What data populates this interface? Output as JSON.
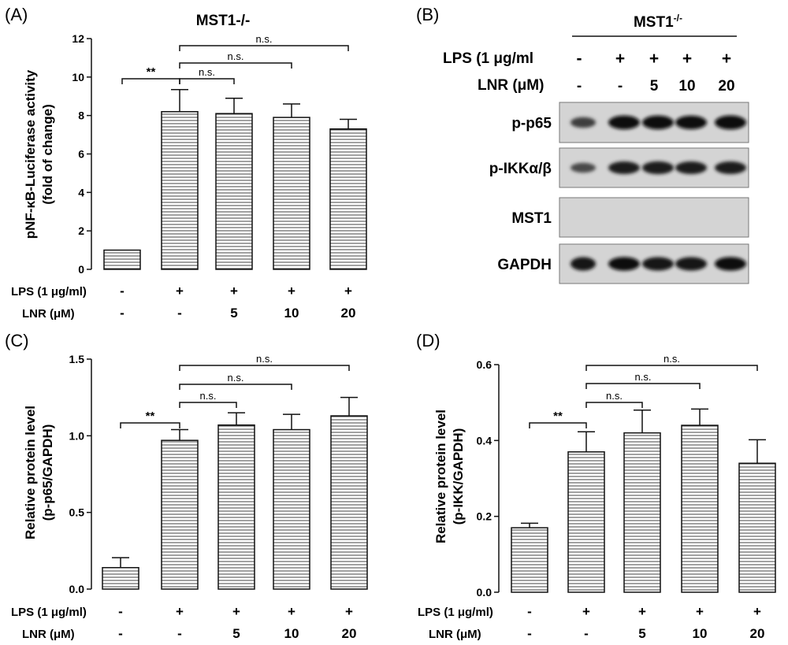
{
  "figure": {
    "panels": [
      {
        "id": "A",
        "label": "(A)",
        "title": "MST1-/-"
      },
      {
        "id": "B",
        "label": "(B)",
        "title": "MST1",
        "title_superscript": "-/-"
      },
      {
        "id": "C",
        "label": "(C)",
        "title": ""
      },
      {
        "id": "D",
        "label": "(D)",
        "title": ""
      }
    ],
    "conditions": {
      "lps_label": "LPS (1 μg/ml)",
      "lnr_label": "LNR (μM)",
      "lps": [
        "-",
        "+",
        "+",
        "+",
        "+"
      ],
      "lnr": [
        "-",
        "-",
        "5",
        "10",
        "20"
      ]
    },
    "significance": {
      "double_star": "**",
      "ns": "n.s."
    },
    "blot": {
      "lps_label": "LPS (1 μg/ml",
      "lnr_label": "LNR  (μM)",
      "bands": [
        {
          "name": "p-p65",
          "intensity": [
            0.55,
            0.95,
            0.95,
            0.92,
            0.98
          ]
        },
        {
          "name": "p-IKKα/β",
          "intensity": [
            0.45,
            0.8,
            0.82,
            0.8,
            0.8
          ]
        },
        {
          "name": "MST1",
          "intensity": [
            0,
            0,
            0,
            0,
            0
          ]
        },
        {
          "name": "GAPDH",
          "intensity": [
            0.9,
            0.92,
            0.9,
            0.9,
            0.92
          ]
        }
      ]
    }
  },
  "chart_data": [
    {
      "panel": "A",
      "type": "bar",
      "title": "MST1-/-",
      "ylabel_lines": [
        "pNF-κB-Luciferase activity",
        "(fold of change)"
      ],
      "ylim": [
        0,
        12
      ],
      "yticks": [
        "0",
        "2",
        "4",
        "6",
        "8",
        "10",
        "12"
      ],
      "categories": [
        "1",
        "2",
        "3",
        "4",
        "5"
      ],
      "values": [
        1.0,
        8.2,
        8.1,
        7.9,
        7.3
      ],
      "errors": [
        0.0,
        1.15,
        0.8,
        0.7,
        0.5
      ]
    },
    {
      "panel": "C",
      "type": "bar",
      "title": "",
      "ylabel_lines": [
        "Relative protein level",
        "(p-p65/GAPDH)"
      ],
      "ylim": [
        0,
        1.5
      ],
      "yticks": [
        "0.0",
        "0.5",
        "1.0",
        "1.5"
      ],
      "categories": [
        "1",
        "2",
        "3",
        "4",
        "5"
      ],
      "values": [
        0.14,
        0.97,
        1.07,
        1.04,
        1.13
      ],
      "errors": [
        0.065,
        0.07,
        0.08,
        0.1,
        0.12
      ]
    },
    {
      "panel": "D",
      "type": "bar",
      "title": "",
      "ylabel_lines": [
        "Relative protein level",
        "(p-IKK/GAPDH)"
      ],
      "ylim": [
        0,
        0.6
      ],
      "yticks": [
        "0.0",
        "0.2",
        "0.4",
        "0.6"
      ],
      "categories": [
        "1",
        "2",
        "3",
        "4",
        "5"
      ],
      "values": [
        0.17,
        0.37,
        0.42,
        0.44,
        0.34
      ],
      "errors": [
        0.012,
        0.053,
        0.06,
        0.043,
        0.062
      ]
    }
  ]
}
